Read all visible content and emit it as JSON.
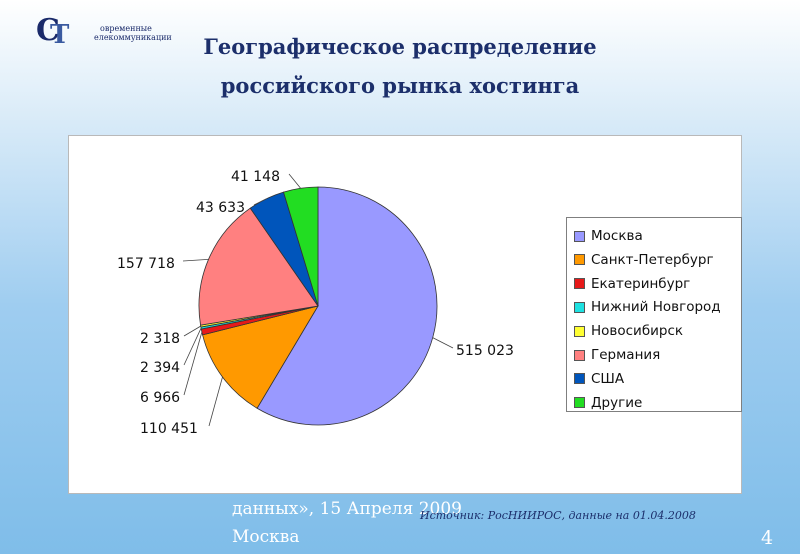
{
  "logo": {
    "letters": "СТ",
    "line1": "овременные",
    "line2": "елекоммуникации"
  },
  "title_line1": "Географическое распределение",
  "title_line2": "российского рынка хостинга",
  "chart_data": {
    "type": "pie",
    "title": "",
    "slices": [
      {
        "label": "Москва",
        "value": 515023,
        "display": "515 023",
        "color": "#9999ff"
      },
      {
        "label": "Санкт-Петербург",
        "value": 110451,
        "display": "110 451",
        "color": "#ff9900"
      },
      {
        "label": "Екатеринбург",
        "value": 6966,
        "display": "6 966",
        "color": "#e61919"
      },
      {
        "label": "Нижний Новгород",
        "value": 2394,
        "display": "2 394",
        "color": "#1ee1e1"
      },
      {
        "label": "Новосибирск",
        "value": 2318,
        "display": "2 318",
        "color": "#ffff33"
      },
      {
        "label": "Германия",
        "value": 157718,
        "display": "157 718",
        "color": "#ff8080"
      },
      {
        "label": "США",
        "value": 43633,
        "display": "43 633",
        "color": "#0055bb"
      },
      {
        "label": "Другие",
        "value": 41148,
        "display": "41 148",
        "color": "#22dd22"
      }
    ],
    "legend_position": "right"
  },
  "footer_line1": "данных», 15 Апреля 2009",
  "footer_line2": "Москва",
  "source": "Источник: РосНИИРОС, данные на 01.04.2008",
  "page_number": "4"
}
